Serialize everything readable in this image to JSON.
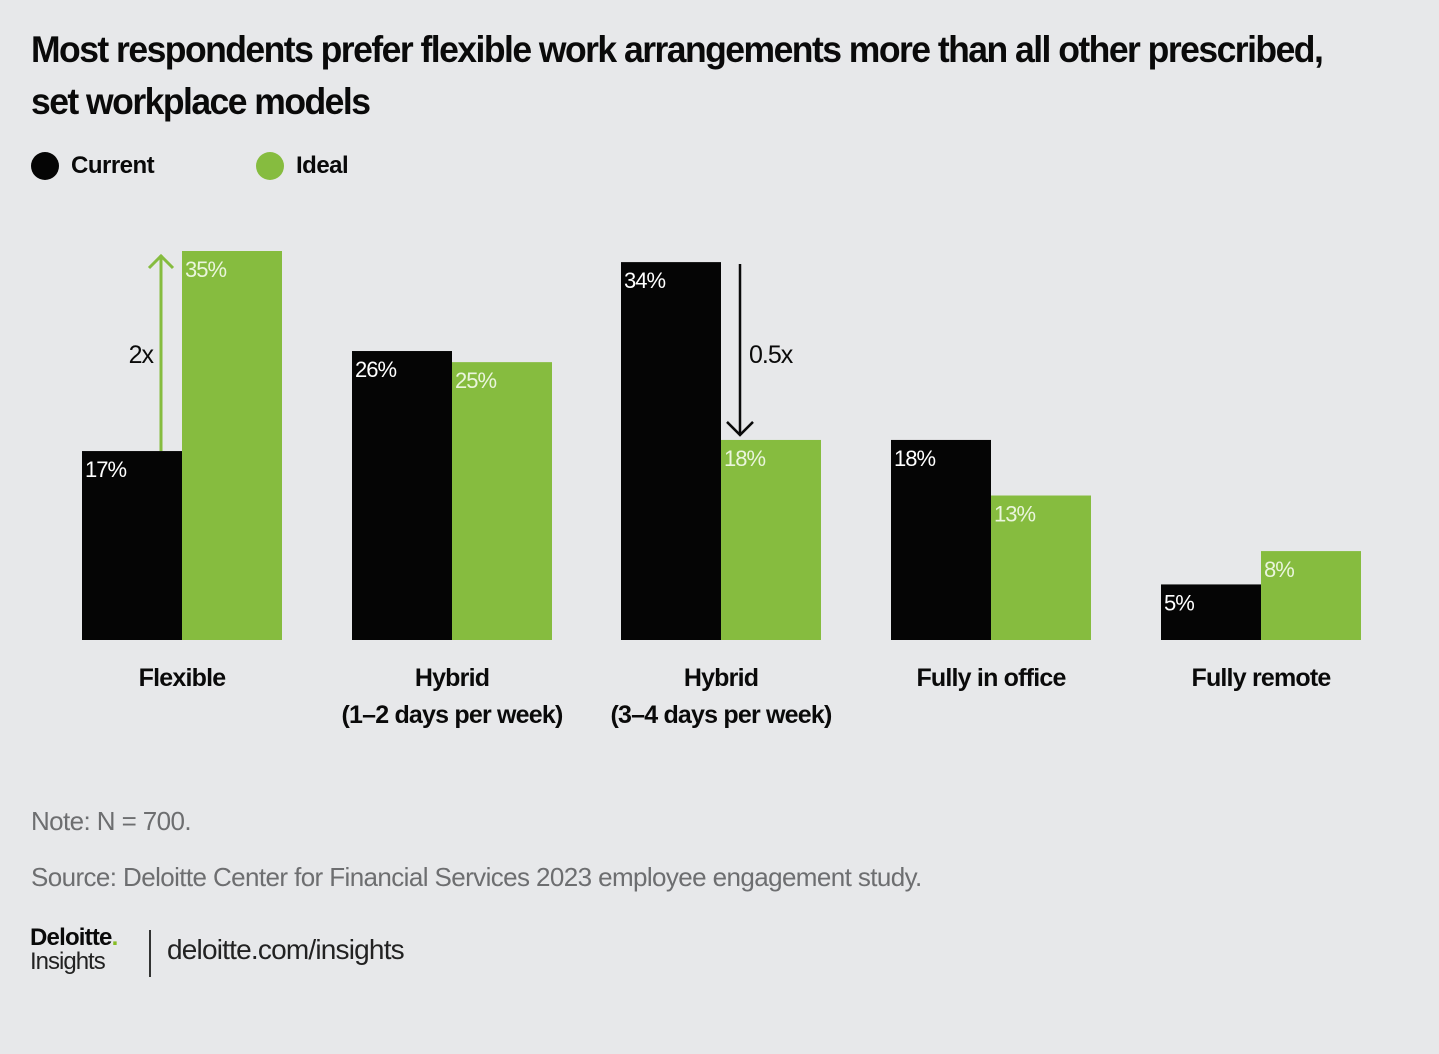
{
  "chart_data": {
    "type": "bar",
    "title": "Most respondents prefer flexible work arrangements more than all other prescribed, set workplace models",
    "categories": [
      [
        "Flexible"
      ],
      [
        "Hybrid",
        "(1–2 days per week)"
      ],
      [
        "Hybrid",
        "(3–4 days per week)"
      ],
      [
        "Fully in office"
      ],
      [
        "Fully remote"
      ]
    ],
    "series": [
      {
        "name": "Current",
        "color": "#050505",
        "label_color": "#ffffff",
        "values": [
          17,
          26,
          34,
          18,
          5
        ]
      },
      {
        "name": "Ideal",
        "color": "#86bc3f",
        "label_color": "#eaf5dc",
        "values": [
          35,
          25,
          18,
          13,
          8
        ]
      }
    ],
    "value_suffix": "%",
    "ylim": [
      0,
      35
    ],
    "grid": false,
    "legend_position": "top-left",
    "annotations": [
      {
        "text": "2x",
        "category_index": 0,
        "from": 17,
        "to": 35,
        "direction": "up",
        "color": "#86bc3f"
      },
      {
        "text": "0.5x",
        "category_index": 2,
        "from": 34,
        "to": 18,
        "direction": "down",
        "color": "#0a0a0a"
      }
    ],
    "xlabel": "",
    "ylabel": ""
  },
  "legend": [
    {
      "label": "Current",
      "color": "#050505"
    },
    {
      "label": "Ideal",
      "color": "#86bc3f"
    }
  ],
  "notes": {
    "note": "Note: N = 700.",
    "source": "Source: Deloitte Center for Financial Services 2023 employee engagement study."
  },
  "footer": {
    "logo_name": "Deloitte",
    "logo_dot": ".",
    "logo_sub": "Insights",
    "url": "deloitte.com/insights"
  }
}
